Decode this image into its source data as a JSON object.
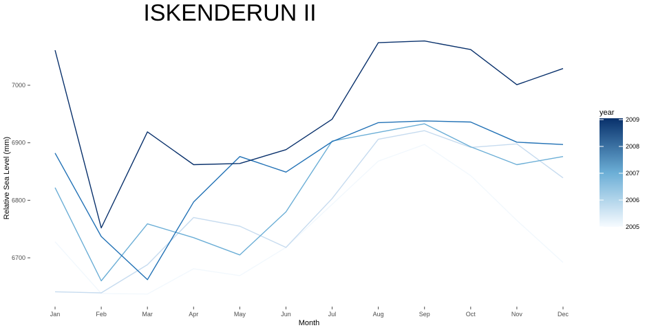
{
  "chart_data": {
    "type": "line",
    "title": "ISKENDERUN II",
    "xlabel": "Month",
    "ylabel": "Relative Sea Level (mm)",
    "categories": [
      "Jan",
      "Feb",
      "Mar",
      "Apr",
      "May",
      "Jun",
      "Jul",
      "Aug",
      "Sep",
      "Oct",
      "Nov",
      "Dec"
    ],
    "ylim": [
      6630,
      7085
    ],
    "yticks": [
      6700,
      6800,
      6900,
      7000
    ],
    "grid": false,
    "legend": {
      "title": "year",
      "placement": "right",
      "scale": "continuous",
      "range": [
        2005,
        2009
      ],
      "ticks": [
        2005,
        2006,
        2007,
        2008,
        2009
      ],
      "low_color": "#f7fbff",
      "high_color": "#08306b"
    },
    "series": [
      {
        "year": 2005,
        "color": "#f2f8fd",
        "values": [
          6728,
          6638,
          6637,
          6681,
          6669,
          6718,
          6793,
          6868,
          6897,
          6843,
          6765,
          6692
        ]
      },
      {
        "year": 2006,
        "color": "#c6dbef",
        "values": [
          6641,
          6639,
          6688,
          6770,
          6755,
          6718,
          6803,
          6906,
          6921,
          6892,
          6898,
          6839
        ]
      },
      {
        "year": 2007,
        "color": "#6baed6",
        "values": [
          6822,
          6660,
          6759,
          6735,
          6705,
          6780,
          6903,
          6918,
          6933,
          6893,
          6862,
          6876
        ]
      },
      {
        "year": 2008,
        "color": "#2171b5",
        "values": [
          6882,
          6737,
          6662,
          6797,
          6876,
          6849,
          6902,
          6935,
          6938,
          6936,
          6901,
          6897
        ]
      },
      {
        "year": 2009,
        "color": "#08306b",
        "values": [
          7061,
          6752,
          6919,
          6862,
          6864,
          6888,
          6941,
          7074,
          7077,
          7062,
          7001,
          7029
        ]
      }
    ]
  }
}
